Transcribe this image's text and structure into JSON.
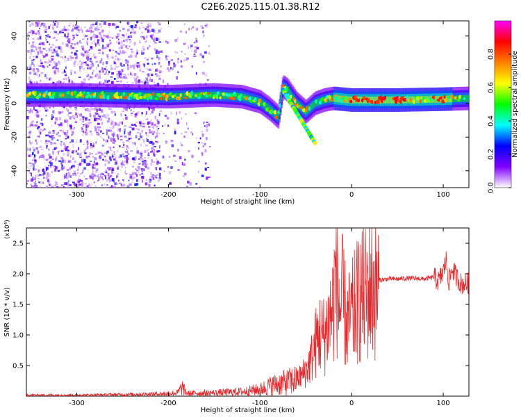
{
  "title": "C2E6.2025.115.01.38.R12",
  "chart_data": [
    {
      "type": "heatmap",
      "xlabel": "Height of straight line (km)",
      "ylabel": "Frequency (Hz)",
      "xlim": [
        -355,
        128
      ],
      "ylim": [
        -50,
        49
      ],
      "xticks": [
        -300,
        -200,
        -100,
        0,
        100
      ],
      "xtick_labels": [
        "-300",
        "-200",
        "-100",
        "0",
        "100"
      ],
      "yticks": [
        40,
        20,
        0,
        -20,
        -40
      ],
      "ytick_labels": [
        "40",
        "20",
        "0",
        "-20",
        "-40"
      ],
      "colorbar": {
        "label": "Normalized spectral amplitude",
        "range": [
          0.0,
          1.0
        ],
        "ticks": [
          0.0,
          0.2,
          0.4,
          0.6,
          0.8
        ],
        "tick_labels": [
          "0.0",
          "0.2",
          "0.4",
          "0.6",
          "0.8"
        ],
        "colors": [
          "#ffffff",
          "#8000ff",
          "#0000ff",
          "#00ffff",
          "#00ff00",
          "#ffff00",
          "#ff8000",
          "#ff0000",
          "#ff00ff"
        ]
      },
      "ridge": {
        "description_points_x": [
          -355,
          -300,
          -250,
          -200,
          -150,
          -120,
          -100,
          -90,
          -80,
          -75,
          -70,
          -60,
          -50,
          -40,
          -30,
          -20,
          0,
          50,
          100,
          128
        ],
        "description_points_freq": [
          5,
          5,
          4.5,
          4,
          5,
          4,
          1,
          -3,
          -8,
          10,
          8,
          0,
          -5,
          0,
          2,
          3,
          2,
          2,
          2.5,
          3
        ]
      }
    },
    {
      "type": "line",
      "xlabel": "Height of straight line (km)",
      "ylabel": "SNR (10 * v/v)",
      "multiplier": "(x10⁴)",
      "xlim": [
        -355,
        128
      ],
      "ylim": [
        0,
        2.75
      ],
      "xticks": [
        -300,
        -200,
        -100,
        0,
        100
      ],
      "xtick_labels": [
        "-300",
        "-200",
        "-100",
        "0",
        "100"
      ],
      "yticks": [
        0.5,
        1.0,
        1.5,
        2.0,
        2.5
      ],
      "ytick_labels": [
        "0.5",
        "1.0",
        "1.5",
        "2.0",
        "2.5"
      ],
      "color": "#e8282b",
      "series": [
        {
          "x": [
            -355,
            -300,
            -250,
            -210,
            -190,
            -185,
            -180,
            -150,
            -120,
            -100,
            -90,
            -80,
            -70,
            -60,
            -55,
            -50,
            -45,
            -40,
            -35,
            -30,
            -25,
            -20,
            -17,
            -15,
            -12,
            -10,
            -5,
            0,
            5,
            10,
            20,
            30,
            40,
            50,
            60,
            70,
            80,
            90,
            95,
            100,
            103,
            106,
            110,
            115,
            120,
            128
          ],
          "y": [
            0.02,
            0.02,
            0.03,
            0.04,
            0.06,
            0.16,
            0.05,
            0.06,
            0.08,
            0.12,
            0.18,
            0.22,
            0.25,
            0.3,
            0.35,
            0.45,
            0.6,
            0.9,
            1.1,
            1.05,
            1.3,
            1.6,
            2.35,
            1.8,
            1.5,
            1.7,
            1.25,
            1.4,
            1.6,
            1.75,
            1.85,
            1.9,
            1.92,
            1.92,
            1.93,
            1.93,
            1.92,
            1.95,
            1.9,
            2.05,
            2.25,
            1.9,
            2.1,
            1.95,
            1.85,
            1.87
          ]
        }
      ]
    }
  ]
}
